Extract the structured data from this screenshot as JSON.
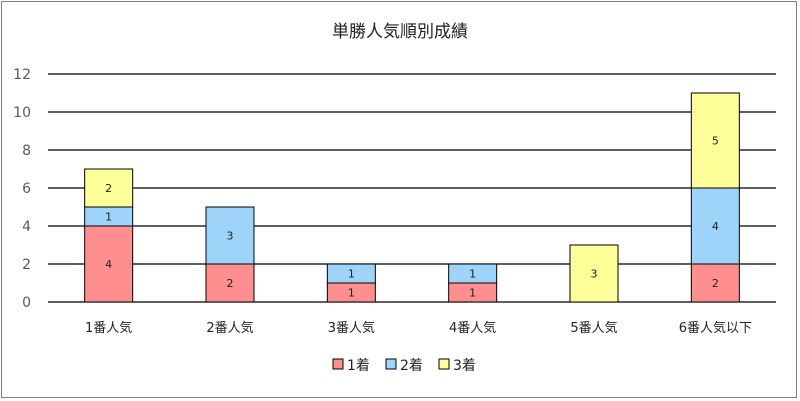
{
  "chart_data": {
    "type": "bar",
    "stacked": true,
    "title": "単勝人気順別成績",
    "categories": [
      "1番人気",
      "2番人気",
      "3番人気",
      "4番人気",
      "5番人気",
      "6番人気以下"
    ],
    "series": [
      {
        "name": "1着",
        "values": [
          4,
          2,
          1,
          1,
          0,
          2
        ],
        "color": "#ff8f8f"
      },
      {
        "name": "2着",
        "values": [
          1,
          3,
          1,
          1,
          0,
          4
        ],
        "color": "#9fd4fa"
      },
      {
        "name": "3着",
        "values": [
          2,
          0,
          0,
          0,
          3,
          5
        ],
        "color": "#ffff99"
      }
    ],
    "ylim": [
      0,
      12
    ],
    "yticks": [
      0,
      2,
      4,
      6,
      8,
      10,
      12
    ],
    "grid": true,
    "legend": "bottom"
  }
}
